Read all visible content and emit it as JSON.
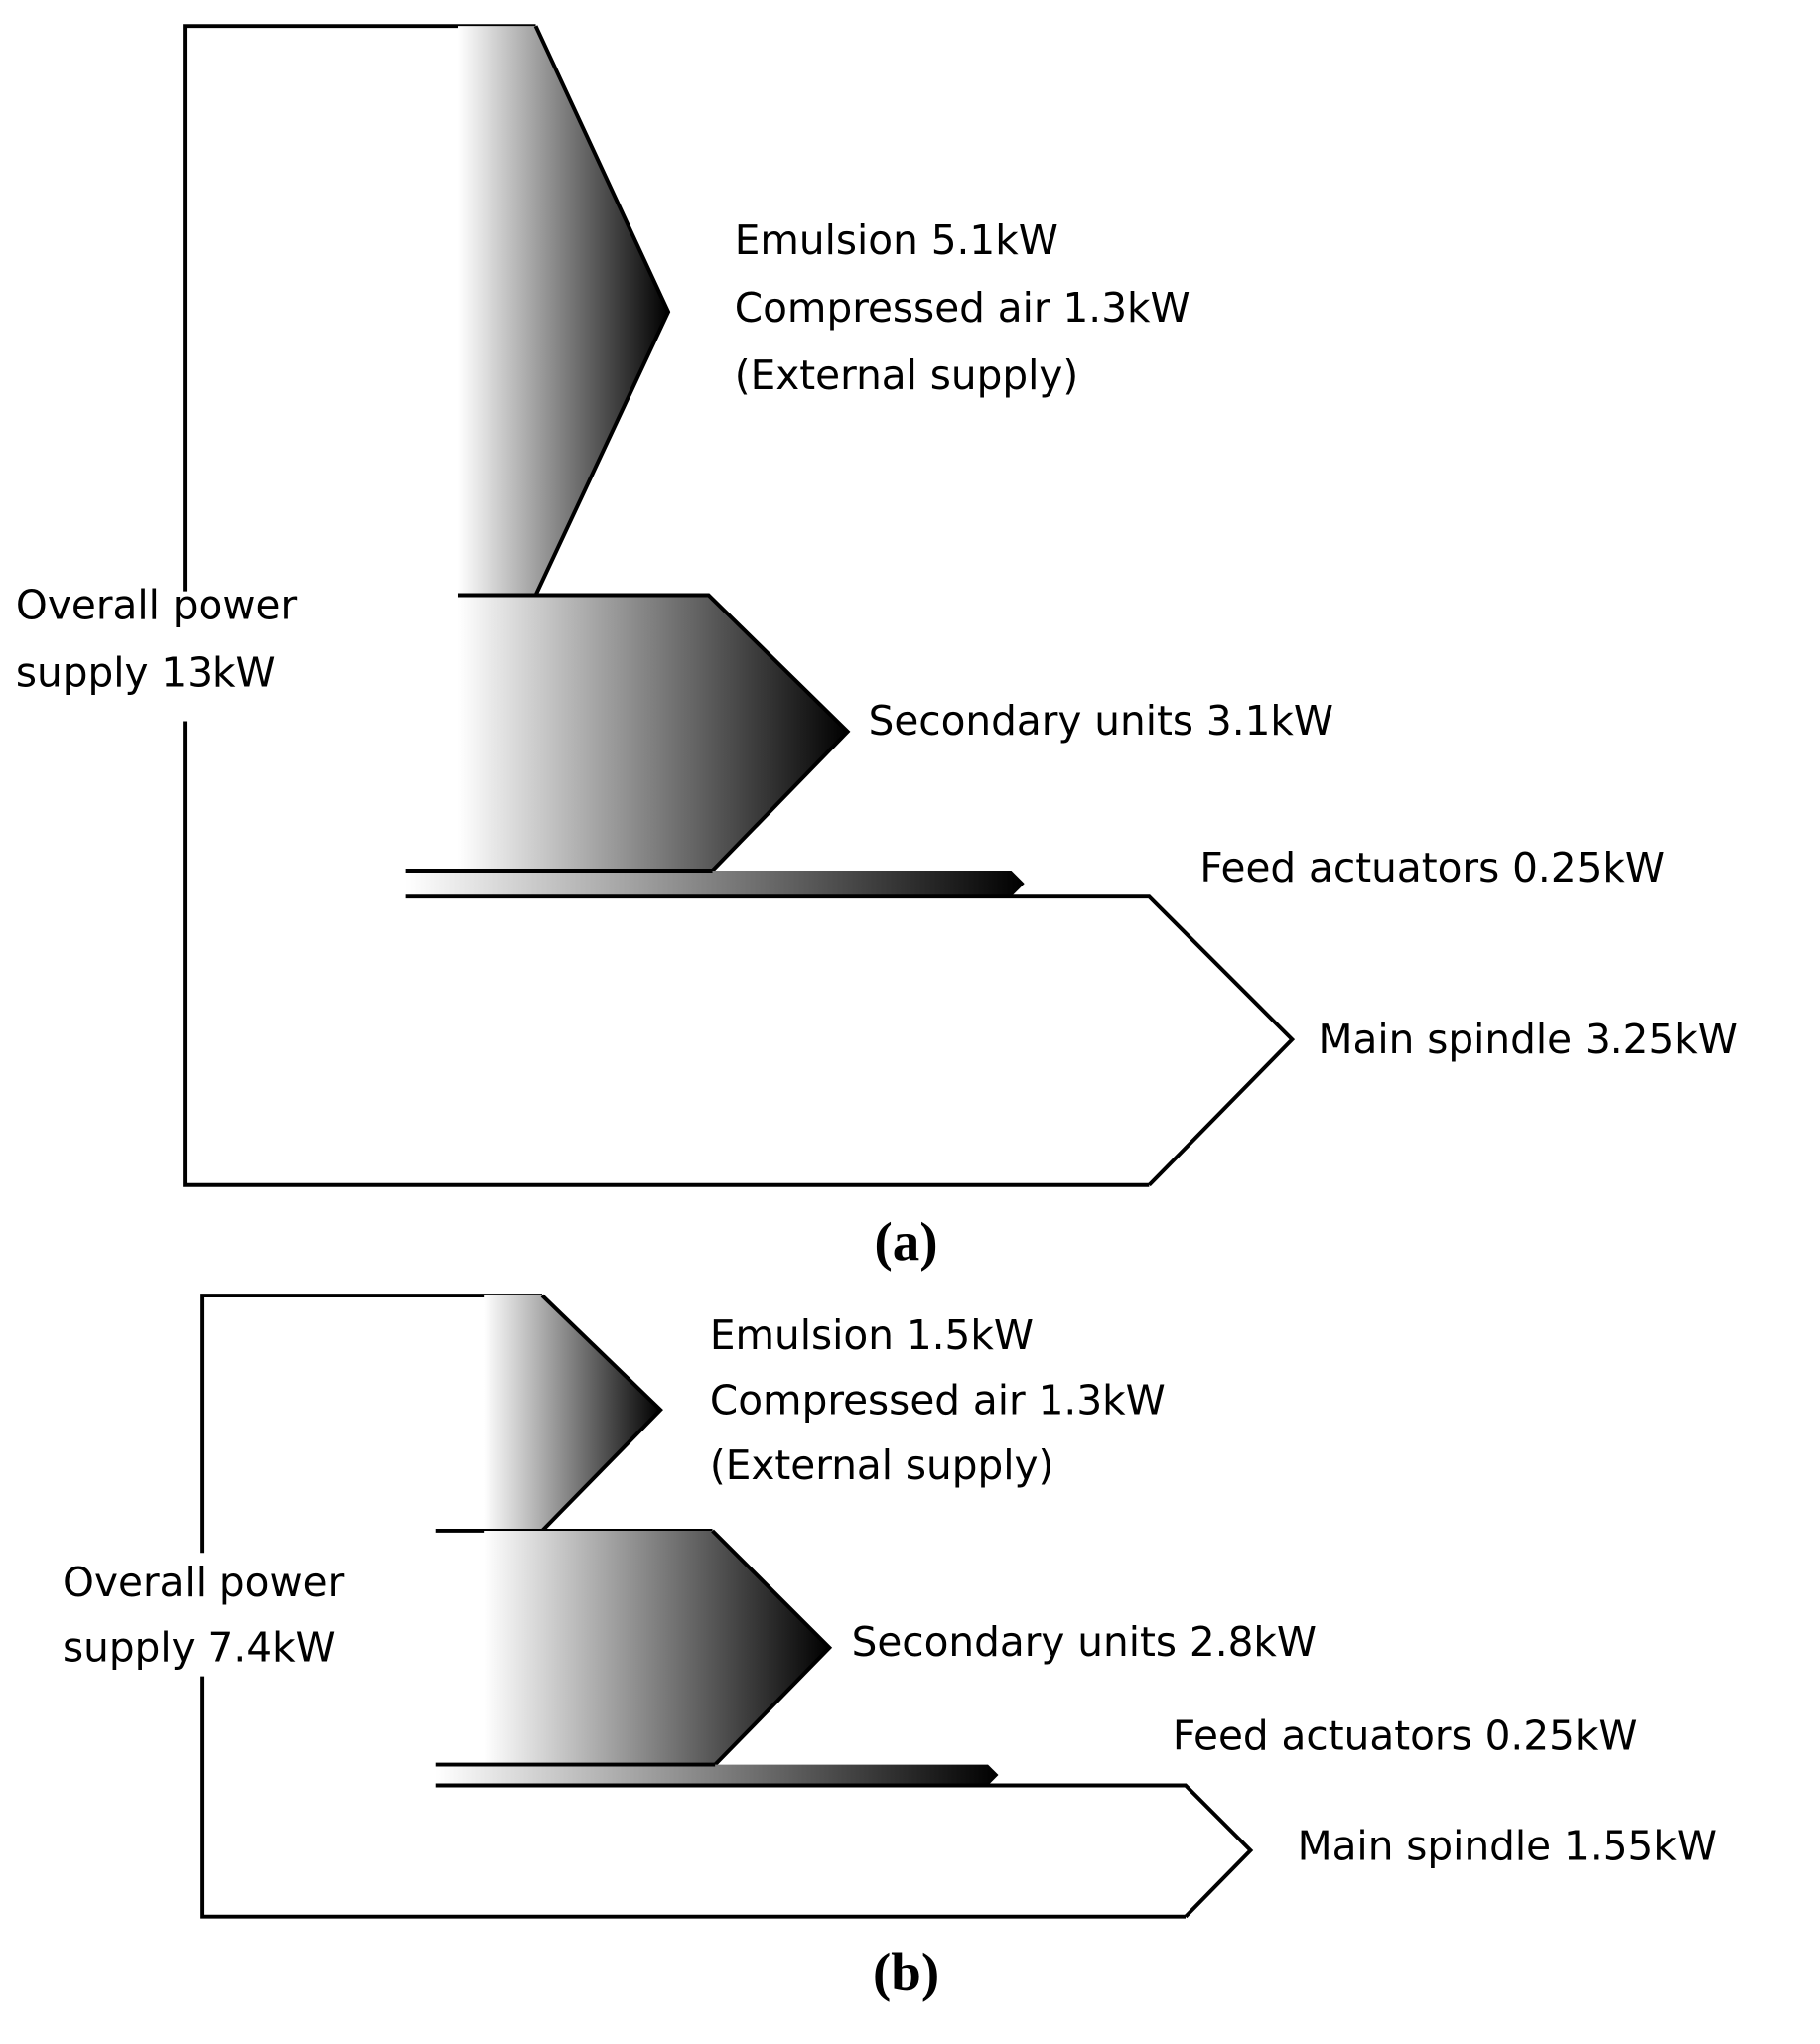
{
  "panels": [
    {
      "caption": "(a)",
      "source": [
        "Overall power",
        "supply 13kW"
      ],
      "flows": [
        [
          "Emulsion 5.1kW",
          "Compressed air 1.3kW",
          "(External supply)"
        ],
        [
          "Secondary units 3.1kW"
        ],
        [
          "Feed actuators 0.25kW"
        ],
        [
          "Main spindle 3.25kW"
        ]
      ]
    },
    {
      "caption": "(b)",
      "source": [
        "Overall power",
        "supply 7.4kW"
      ],
      "flows": [
        [
          "Emulsion 1.5kW",
          "Compressed air 1.3kW",
          "(External supply)"
        ],
        [
          "Secondary units 2.8kW"
        ],
        [
          "Feed actuators 0.25kW"
        ],
        [
          "Main spindle 1.55kW"
        ]
      ]
    }
  ]
}
